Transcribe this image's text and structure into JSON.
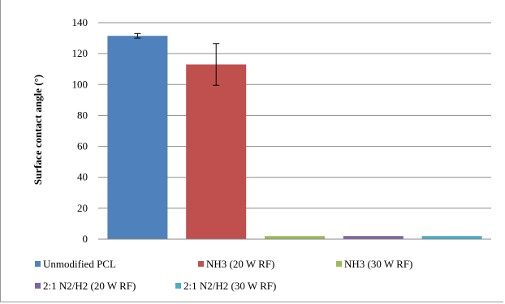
{
  "chart_data": {
    "type": "bar",
    "title": "",
    "xlabel": "",
    "ylabel": "Surface contact angle (°)",
    "ylim": [
      0,
      140
    ],
    "yticks": [
      "0",
      "20",
      "40",
      "60",
      "80",
      "100",
      "120",
      "140"
    ],
    "grid": true,
    "legend_position": "bottom",
    "categories": [
      "Unmodified PCL",
      "NH3 (20 W RF)",
      "NH3 (30 W RF)",
      "2:1 N2/H2 (20 W RF)",
      "2:1 N2/H2 (30 W RF)"
    ],
    "values": [
      131.5,
      113,
      2,
      2,
      2
    ],
    "errors": [
      1.5,
      13.5,
      0,
      0,
      0
    ],
    "colors": [
      "#4f81bd",
      "#c0504d",
      "#9bbb59",
      "#8064a2",
      "#4bacc6"
    ]
  }
}
